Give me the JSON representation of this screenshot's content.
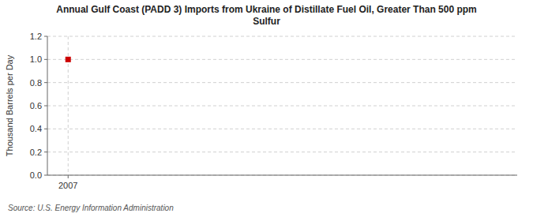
{
  "chart_data": {
    "type": "scatter",
    "title": "Annual Gulf Coast (PADD 3) Imports from Ukraine of Distillate Fuel Oil, Greater Than 500 ppm\nSulfur",
    "y_label": "Thousand Barrels per Day",
    "source": "Source: U.S. Energy Information Administration",
    "x": [
      2007
    ],
    "values": [
      1.0
    ],
    "color": "#cc0000",
    "marker": "square",
    "xlim": [
      2006.4,
      2020
    ],
    "xticks": [
      2007
    ],
    "ylim": [
      0.0,
      1.2
    ],
    "yticks": [
      {
        "value": 0.0,
        "label": "0.0"
      },
      0.2,
      0.4,
      0.6,
      0.8,
      {
        "value": 1.0,
        "label": "1.0"
      },
      1.2
    ],
    "grid": true
  }
}
